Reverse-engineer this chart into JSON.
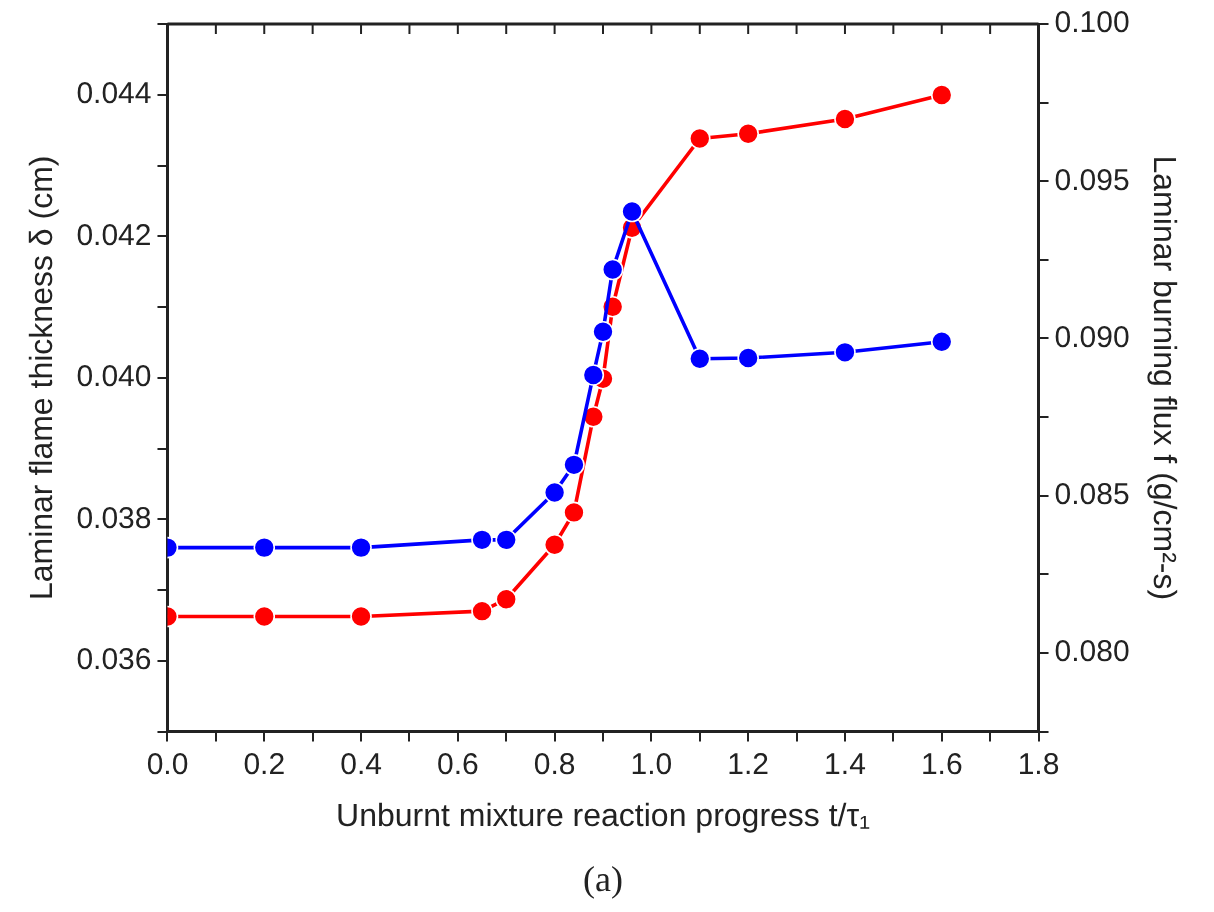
{
  "chart_data": {
    "type": "line",
    "xlabel": "Unburnt mixture reaction progress t/τ₁",
    "ylabel": "Laminar flame thickness δ (cm)",
    "y2label": "Laminar burning flux f (g/cm²-s)",
    "annotations": [
      "(a)"
    ],
    "x": [
      0,
      0.2,
      0.4,
      0.65,
      0.7,
      0.8,
      0.84,
      0.88,
      0.9,
      0.92,
      0.96,
      1.1,
      1.2,
      1.4,
      1.6
    ],
    "series": [
      {
        "color": "#0000ff",
        "values": [
          0.0376,
          0.0376,
          0.0376,
          0.03771,
          0.03771,
          0.03838,
          0.03877,
          0.04004,
          0.04065,
          0.04153,
          0.04235,
          0.04027,
          0.04028,
          0.04036,
          0.04051
        ]
      },
      {
        "color": "#ff0000",
        "axis": "y2",
        "values": [
          0.08116,
          0.08116,
          0.08116,
          0.08133,
          0.08171,
          0.08344,
          0.08447,
          0.08751,
          0.08872,
          0.09101,
          0.09352,
          0.09636,
          0.09651,
          0.09698,
          0.09774
        ]
      }
    ],
    "xlim": [
      0,
      1.8
    ],
    "xticks": [
      {
        "value": 0,
        "label": "0.0"
      },
      {
        "value": 0.1,
        "label": null
      },
      0.2,
      {
        "value": 0.3,
        "label": null
      },
      0.4,
      {
        "value": 0.5,
        "label": null
      },
      0.6,
      {
        "value": 0.7,
        "label": null
      },
      0.8,
      {
        "value": 0.9,
        "label": null
      },
      {
        "value": 1.0,
        "label": "1.0"
      },
      {
        "value": 1.1,
        "label": null
      },
      1.2,
      {
        "value": 1.3,
        "label": null
      },
      1.4,
      {
        "value": 1.5,
        "label": null
      },
      1.6,
      {
        "value": 1.7,
        "label": null
      },
      1.8
    ],
    "ylim": [
      0.035,
      0.045
    ],
    "yticks": [
      {
        "value": 0.035,
        "label": null
      },
      0.036,
      {
        "value": 0.037,
        "label": null
      },
      0.038,
      {
        "value": 0.039,
        "label": null
      },
      {
        "value": 0.04,
        "label": "0.040"
      },
      {
        "value": 0.041,
        "label": null
      },
      0.042,
      {
        "value": 0.043,
        "label": null
      },
      0.044,
      {
        "value": 0.045,
        "label": null
      }
    ],
    "y2lim": [
      0.0775,
      0.1
    ],
    "y2ticks": [
      {
        "value": 0.0775,
        "label": null
      },
      {
        "value": 0.08,
        "label": "0.080"
      },
      {
        "value": 0.0825,
        "label": null
      },
      0.085,
      {
        "value": 0.0875,
        "label": null
      },
      {
        "value": 0.09,
        "label": "0.090"
      },
      {
        "value": 0.0925,
        "label": null
      },
      0.095,
      {
        "value": 0.0975,
        "label": null
      },
      {
        "value": 0.1,
        "label": "0.100"
      }
    ],
    "grid": false,
    "legend": false,
    "marker": "circle",
    "line_style": "solid"
  }
}
